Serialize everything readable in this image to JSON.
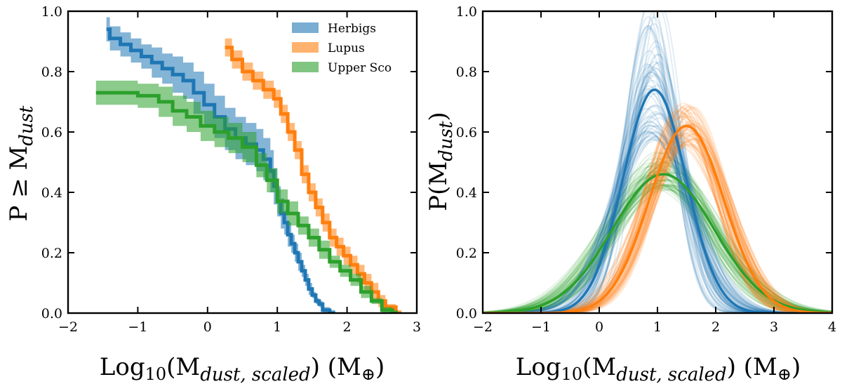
{
  "chart_data": [
    {
      "type": "line",
      "subtype": "cumulative-step-with-band",
      "xlabel": "Log10(Mdust,scaled) (M⊕)",
      "ylabel": "P ≥ Mdust",
      "xlim": [
        -2,
        3
      ],
      "ylim": [
        0,
        1
      ],
      "xticks": [
        -2,
        -1,
        0,
        1,
        2,
        3
      ],
      "yticks": [
        0.0,
        0.2,
        0.4,
        0.6,
        0.8,
        1.0
      ],
      "xtick_labels": [
        "−2",
        "−1",
        "0",
        "1",
        "2",
        "3"
      ],
      "ytick_labels": [
        "0.0",
        "0.2",
        "0.4",
        "0.6",
        "0.8",
        "1.0"
      ],
      "grid": false,
      "legend_position": "top-right",
      "series": [
        {
          "name": "Herbigs",
          "color": "#1f77b4",
          "x": [
            -1.45,
            -1.4,
            -1.25,
            -1.1,
            -0.95,
            -0.8,
            -0.65,
            -0.5,
            -0.35,
            -0.2,
            -0.05,
            0.1,
            0.25,
            0.4,
            0.55,
            0.7,
            0.8,
            0.9,
            0.95,
            1.0,
            1.05,
            1.1,
            1.15,
            1.2,
            1.25,
            1.3,
            1.35,
            1.4,
            1.45,
            1.5,
            1.55,
            1.6,
            1.65,
            1.75
          ],
          "y": [
            0.94,
            0.91,
            0.89,
            0.87,
            0.85,
            0.83,
            0.81,
            0.79,
            0.77,
            0.73,
            0.69,
            0.65,
            0.61,
            0.58,
            0.56,
            0.54,
            0.51,
            0.47,
            0.42,
            0.37,
            0.33,
            0.3,
            0.26,
            0.23,
            0.2,
            0.17,
            0.14,
            0.11,
            0.08,
            0.06,
            0.04,
            0.03,
            0.01,
            0.0
          ],
          "band_half_width": [
            0.04,
            0.04,
            0.04,
            0.04,
            0.04,
            0.05,
            0.05,
            0.06,
            0.06,
            0.07,
            0.07,
            0.07,
            0.07,
            0.07,
            0.07,
            0.07,
            0.07,
            0.07,
            0.06,
            0.05,
            0.05,
            0.04,
            0.04,
            0.03,
            0.03,
            0.03,
            0.02,
            0.02,
            0.02,
            0.01,
            0.01,
            0.01,
            0.01,
            0.01
          ]
        },
        {
          "name": "Lupus",
          "color": "#ff7f0e",
          "x": [
            0.25,
            0.35,
            0.5,
            0.65,
            0.8,
            0.95,
            1.05,
            1.15,
            1.25,
            1.35,
            1.45,
            1.55,
            1.65,
            1.75,
            1.85,
            1.95,
            2.05,
            2.15,
            2.25,
            2.35,
            2.45,
            2.55,
            2.7
          ],
          "y": [
            0.88,
            0.84,
            0.8,
            0.77,
            0.74,
            0.71,
            0.66,
            0.6,
            0.54,
            0.46,
            0.4,
            0.35,
            0.3,
            0.25,
            0.22,
            0.19,
            0.16,
            0.13,
            0.1,
            0.07,
            0.04,
            0.02,
            0.0
          ],
          "band_half_width": [
            0.03,
            0.03,
            0.03,
            0.03,
            0.03,
            0.03,
            0.03,
            0.03,
            0.03,
            0.03,
            0.03,
            0.03,
            0.03,
            0.03,
            0.03,
            0.03,
            0.03,
            0.03,
            0.03,
            0.03,
            0.02,
            0.01,
            0.01
          ]
        },
        {
          "name": "Upper Sco",
          "color": "#2ca02c",
          "x": [
            -1.6,
            -1.3,
            -1.0,
            -0.7,
            -0.5,
            -0.3,
            -0.1,
            0.1,
            0.3,
            0.5,
            0.7,
            0.85,
            1.0,
            1.15,
            1.3,
            1.45,
            1.6,
            1.75,
            1.9,
            2.05,
            2.2,
            2.35,
            2.5,
            2.65
          ],
          "y": [
            0.73,
            0.73,
            0.72,
            0.7,
            0.67,
            0.65,
            0.62,
            0.6,
            0.58,
            0.55,
            0.49,
            0.44,
            0.37,
            0.33,
            0.29,
            0.25,
            0.21,
            0.17,
            0.14,
            0.11,
            0.07,
            0.04,
            0.01,
            0.0
          ],
          "band_half_width": [
            0.04,
            0.04,
            0.04,
            0.05,
            0.05,
            0.05,
            0.05,
            0.05,
            0.05,
            0.05,
            0.04,
            0.04,
            0.04,
            0.04,
            0.03,
            0.03,
            0.03,
            0.02,
            0.02,
            0.02,
            0.02,
            0.01,
            0.01,
            0.01
          ]
        }
      ]
    },
    {
      "type": "line",
      "subtype": "gaussian-with-posterior-samples",
      "xlabel": "Log10(Mdust,scaled) (M⊕)",
      "ylabel": "P(Mdust)",
      "xlim": [
        -2,
        4
      ],
      "ylim": [
        0,
        1
      ],
      "xticks": [
        -2,
        -1,
        0,
        1,
        2,
        3,
        4
      ],
      "yticks": [
        0.0,
        0.2,
        0.4,
        0.6,
        0.8,
        1.0
      ],
      "xtick_labels": [
        "−2",
        "−1",
        "0",
        "1",
        "2",
        "3",
        "4"
      ],
      "ytick_labels": [
        "0.0",
        "0.2",
        "0.4",
        "0.6",
        "0.8",
        "1.0"
      ],
      "grid": false,
      "series": [
        {
          "name": "Herbigs",
          "color": "#1f77b4",
          "peak_x": 0.95,
          "peak_y": 0.74,
          "sigma": 0.54,
          "mean_range": [
            0.8,
            1.05
          ],
          "sigma_range": [
            0.38,
            0.7
          ]
        },
        {
          "name": "Lupus",
          "color": "#ff7f0e",
          "peak_x": 1.5,
          "peak_y": 0.62,
          "sigma": 0.64,
          "mean_range": [
            1.35,
            1.65
          ],
          "sigma_range": [
            0.57,
            0.72
          ]
        },
        {
          "name": "Upper Sco",
          "color": "#2ca02c",
          "peak_x": 1.1,
          "peak_y": 0.46,
          "sigma": 0.87,
          "mean_range": [
            0.85,
            1.3
          ],
          "sigma_range": [
            0.75,
            0.98
          ]
        }
      ]
    }
  ]
}
